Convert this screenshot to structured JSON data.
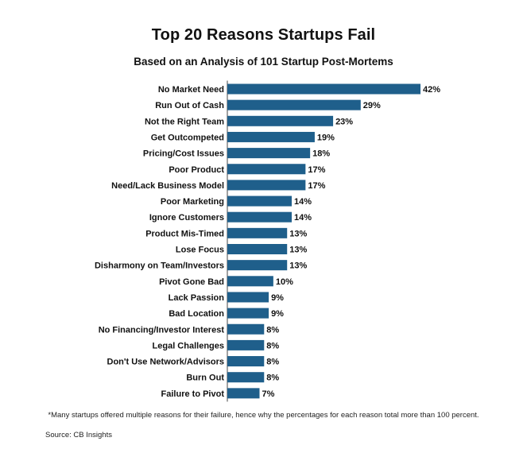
{
  "chart_data": {
    "type": "bar",
    "orientation": "horizontal",
    "title": "Top 20 Reasons Startups Fail",
    "subtitle": "Based on an Analysis of 101 Startup Post-Mortems",
    "categories": [
      "No Market Need",
      "Run Out of Cash",
      "Not the Right Team",
      "Get Outcompeted",
      "Pricing/Cost Issues",
      "Poor Product",
      "Need/Lack Business Model",
      "Poor Marketing",
      "Ignore Customers",
      "Product Mis-Timed",
      "Lose Focus",
      "Disharmony on Team/Investors",
      "Pivot Gone Bad",
      "Lack Passion",
      "Bad Location",
      "No Financing/Investor Interest",
      "Legal Challenges",
      "Don't Use Network/Advisors",
      "Burn Out",
      "Failure to Pivot"
    ],
    "values": [
      42,
      29,
      23,
      19,
      18,
      17,
      17,
      14,
      14,
      13,
      13,
      13,
      10,
      9,
      9,
      8,
      8,
      8,
      8,
      7
    ],
    "value_suffix": "%",
    "xlim": [
      0,
      42
    ],
    "grid": false,
    "legend": "none",
    "bar_color": "#1f5f8b",
    "axis_color": "#444444"
  },
  "footnote": "*Many startups offered multiple reasons for their failure, hence why the percentages for each reason total more than 100 percent.",
  "source": "Source: CB Insights"
}
